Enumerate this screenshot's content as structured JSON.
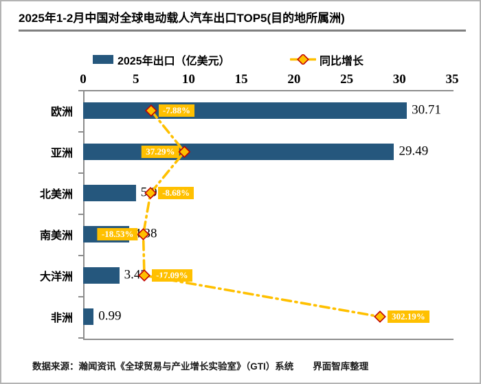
{
  "title": "2025年1-2月中国对全球电动载人汽车出口TOP5(目的地所属洲)",
  "legend": {
    "bar_label": "2025年出口（亿美元）",
    "line_label": "同比增长"
  },
  "chart_data": {
    "type": "bar",
    "orientation": "horizontal",
    "title": "2025年1-2月中国对全球电动载人汽车出口TOP5(目的地所属洲)",
    "categories": [
      "欧洲",
      "亚洲",
      "北美洲",
      "南美洲",
      "大洋洲",
      "非洲"
    ],
    "series": [
      {
        "name": "2025年出口（亿美元）",
        "type": "bar",
        "values": [
          30.71,
          29.49,
          5.0,
          4.38,
          3.43,
          0.99
        ],
        "value_labels": [
          "30.71",
          "29.49",
          "5.0",
          "4.38",
          "3.43",
          "0.99"
        ]
      },
      {
        "name": "同比增长",
        "type": "line",
        "values_pct": [
          -7.88,
          37.29,
          -8.68,
          -18.53,
          -17.09,
          302.19
        ],
        "value_labels": [
          "-7.88%",
          "37.29%",
          "-8.68%",
          "-18.53%",
          "-17.09%",
          "302.19%"
        ],
        "label_side": [
          "right",
          "left",
          "right",
          "left",
          "right",
          "right"
        ]
      }
    ],
    "x_axis_ticks": [
      "0",
      "5",
      "10",
      "15",
      "20",
      "25",
      "30",
      "35"
    ],
    "xlim": [
      0,
      35
    ],
    "secondary_axis_range_pct": [
      -100,
      400
    ],
    "grid": false,
    "legend_position": "top"
  },
  "footer": {
    "source": "数据来源：瀚闻资讯《全球贸易与产业增长实验室》（GTI）系统",
    "credit": "界面智库整理"
  },
  "colors": {
    "bar": "#25577D",
    "line": "#FFC000",
    "marker_fill": "#FFC000",
    "marker_border": "#C00000",
    "growth_label_bg": "#FFC000",
    "growth_label_text": "#FFFFFF",
    "axis": "#8C8C8C",
    "divider": "#808080",
    "text": "#000000"
  }
}
